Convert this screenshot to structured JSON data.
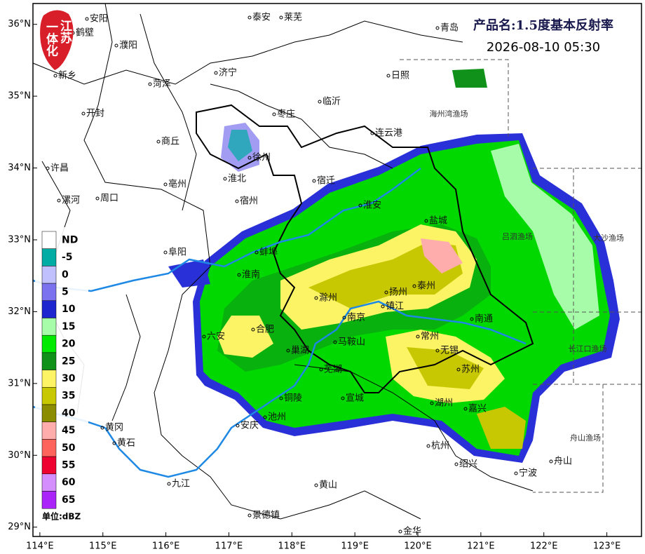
{
  "header": {
    "title": "产品名:1.5度基本反射率",
    "time": "2026-08-10 05:30",
    "logo": [
      "江苏",
      "一体化"
    ]
  },
  "map": {
    "lonlim": [
      113.89,
      123.55
    ],
    "latlim": [
      28.87,
      36.29
    ],
    "xticks": [
      {
        "value": 114,
        "label": "114°E"
      },
      {
        "value": 115,
        "label": "115°E"
      },
      {
        "value": 116,
        "label": "116°E"
      },
      {
        "value": 117,
        "label": "117°E"
      },
      {
        "value": 118,
        "label": "118°E"
      },
      {
        "value": 119,
        "label": "119°E"
      },
      {
        "value": 120,
        "label": "120°E"
      },
      {
        "value": 121,
        "label": "121°E"
      },
      {
        "value": 122,
        "label": "122°E"
      },
      {
        "value": 123,
        "label": "123°E"
      }
    ],
    "yticks": [
      {
        "value": 29,
        "label": "29°N"
      },
      {
        "value": 30,
        "label": "30°N"
      },
      {
        "value": 31,
        "label": "31°N"
      },
      {
        "value": 32,
        "label": "32°N"
      },
      {
        "value": 33,
        "label": "33°N"
      },
      {
        "value": 34,
        "label": "34°N"
      },
      {
        "value": 35,
        "label": "35°N"
      },
      {
        "value": 36,
        "label": "36°N"
      }
    ],
    "cities": [
      "安阳",
      "鹤壁",
      "濮阳",
      "新乡",
      "菏泽",
      "济宁",
      "泰安",
      "莱芜",
      "青岛",
      "日照",
      "临沂",
      "枣庄",
      "开封",
      "商丘",
      "连云港",
      "徐州",
      "许昌",
      "亳州",
      "淮北",
      "宿迁",
      "宿州",
      "周口",
      "漯河",
      "淮安",
      "盐城",
      "阜阳",
      "蚌埠",
      "淮南",
      "扬州",
      "泰州",
      "滁州",
      "镇江",
      "南通",
      "南京",
      "合肥",
      "六安",
      "常州",
      "无锡",
      "马鞍山",
      "巢湖",
      "苏州",
      "芜湖",
      "宣城",
      "湖州",
      "铜陵",
      "嘉兴",
      "池州",
      "安庆",
      "黄冈",
      "黄石",
      "杭州",
      "绍兴",
      "舟山",
      "宁波",
      "九江",
      "黄山",
      "景德镇",
      "金华"
    ],
    "fisheries": [
      "海州湾渔场",
      "大沙渔场",
      "吕泗渔场",
      "长江口渔场",
      "舟山渔场"
    ]
  },
  "legend": {
    "unit": "单位:dBZ",
    "items": [
      {
        "label": "ND",
        "color": "#ffffff"
      },
      {
        "label": "-5",
        "color": "#00aca4"
      },
      {
        "label": "0",
        "color": "#c0c0fe"
      },
      {
        "label": "5",
        "color": "#7a72ee"
      },
      {
        "label": "10",
        "color": "#1e26d0"
      },
      {
        "label": "15",
        "color": "#a6fca8"
      },
      {
        "label": "20",
        "color": "#00ea00"
      },
      {
        "label": "25",
        "color": "#10921a"
      },
      {
        "label": "30",
        "color": "#fcf464"
      },
      {
        "label": "35",
        "color": "#c8c802"
      },
      {
        "label": "40",
        "color": "#8c8c00"
      },
      {
        "label": "45",
        "color": "#feacac"
      },
      {
        "label": "50",
        "color": "#fe645c"
      },
      {
        "label": "55",
        "color": "#ee0230"
      },
      {
        "label": "60",
        "color": "#d48efe"
      },
      {
        "label": "65",
        "color": "#aa24fa"
      }
    ]
  }
}
